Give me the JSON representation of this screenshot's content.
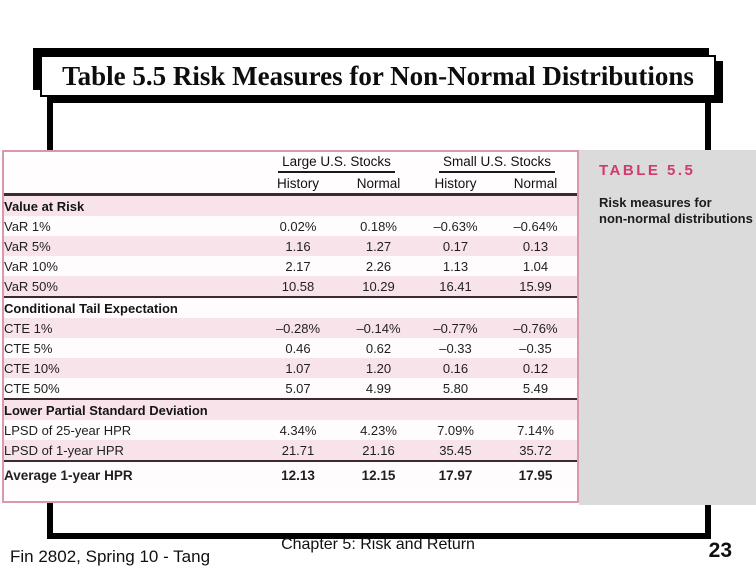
{
  "slide": {
    "title": "Table 5.5 Risk Measures for Non-Normal Distributions",
    "footer_left": "Fin 2802, Spring 10 - Tang",
    "footer_center": "Chapter 5: Risk and Return",
    "page_number": "23"
  },
  "caption": {
    "label": "TABLE 5.5",
    "line1": "Risk measures for",
    "line2": "non-normal distributions"
  },
  "colors": {
    "row_pink": "#f8e3ea",
    "caption_label_pink": "#d23a6e",
    "panel_gray": "#dbdbdb",
    "table_border_pink": "#d998ac"
  },
  "chart_data": {
    "type": "table",
    "title": "Risk measures for non-normal distributions",
    "col_groups": [
      "Large U.S. Stocks",
      "Small U.S. Stocks"
    ],
    "sub_headers": [
      "History",
      "Normal",
      "History",
      "Normal"
    ],
    "rows": [
      {
        "kind": "section",
        "label": "Value at Risk"
      },
      {
        "kind": "data",
        "label": "VaR 1%",
        "c1": "0.02%",
        "c2": "0.18%",
        "c3": "–0.63%",
        "c4": "–0.64%"
      },
      {
        "kind": "data",
        "label": "VaR 5%",
        "c1": "1.16",
        "c2": "1.27",
        "c3": "0.17",
        "c4": "0.13"
      },
      {
        "kind": "data",
        "label": "VaR 10%",
        "c1": "2.17",
        "c2": "2.26",
        "c3": "1.13",
        "c4": "1.04"
      },
      {
        "kind": "data",
        "label": "VaR 50%",
        "c1": "10.58",
        "c2": "10.29",
        "c3": "16.41",
        "c4": "15.99"
      },
      {
        "kind": "section",
        "label": "Conditional Tail Expectation"
      },
      {
        "kind": "data",
        "label": "CTE 1%",
        "c1": "–0.28%",
        "c2": "–0.14%",
        "c3": "–0.77%",
        "c4": "–0.76%"
      },
      {
        "kind": "data",
        "label": "CTE 5%",
        "c1": "0.46",
        "c2": "0.62",
        "c3": "–0.33",
        "c4": "–0.35"
      },
      {
        "kind": "data",
        "label": "CTE 10%",
        "c1": "1.07",
        "c2": "1.20",
        "c3": "0.16",
        "c4": "0.12"
      },
      {
        "kind": "data",
        "label": "CTE 50%",
        "c1": "5.07",
        "c2": "4.99",
        "c3": "5.80",
        "c4": "5.49"
      },
      {
        "kind": "section",
        "label": "Lower Partial Standard Deviation"
      },
      {
        "kind": "data",
        "label": "LPSD of 25-year HPR",
        "c1": "4.34%",
        "c2": "4.23%",
        "c3": "7.09%",
        "c4": "7.14%"
      },
      {
        "kind": "data",
        "label": "LPSD of 1-year HPR",
        "c1": "21.71",
        "c2": "21.16",
        "c3": "35.45",
        "c4": "35.72"
      },
      {
        "kind": "average",
        "label": "Average 1-year HPR",
        "c1": "12.13",
        "c2": "12.15",
        "c3": "17.97",
        "c4": "17.95"
      }
    ]
  }
}
